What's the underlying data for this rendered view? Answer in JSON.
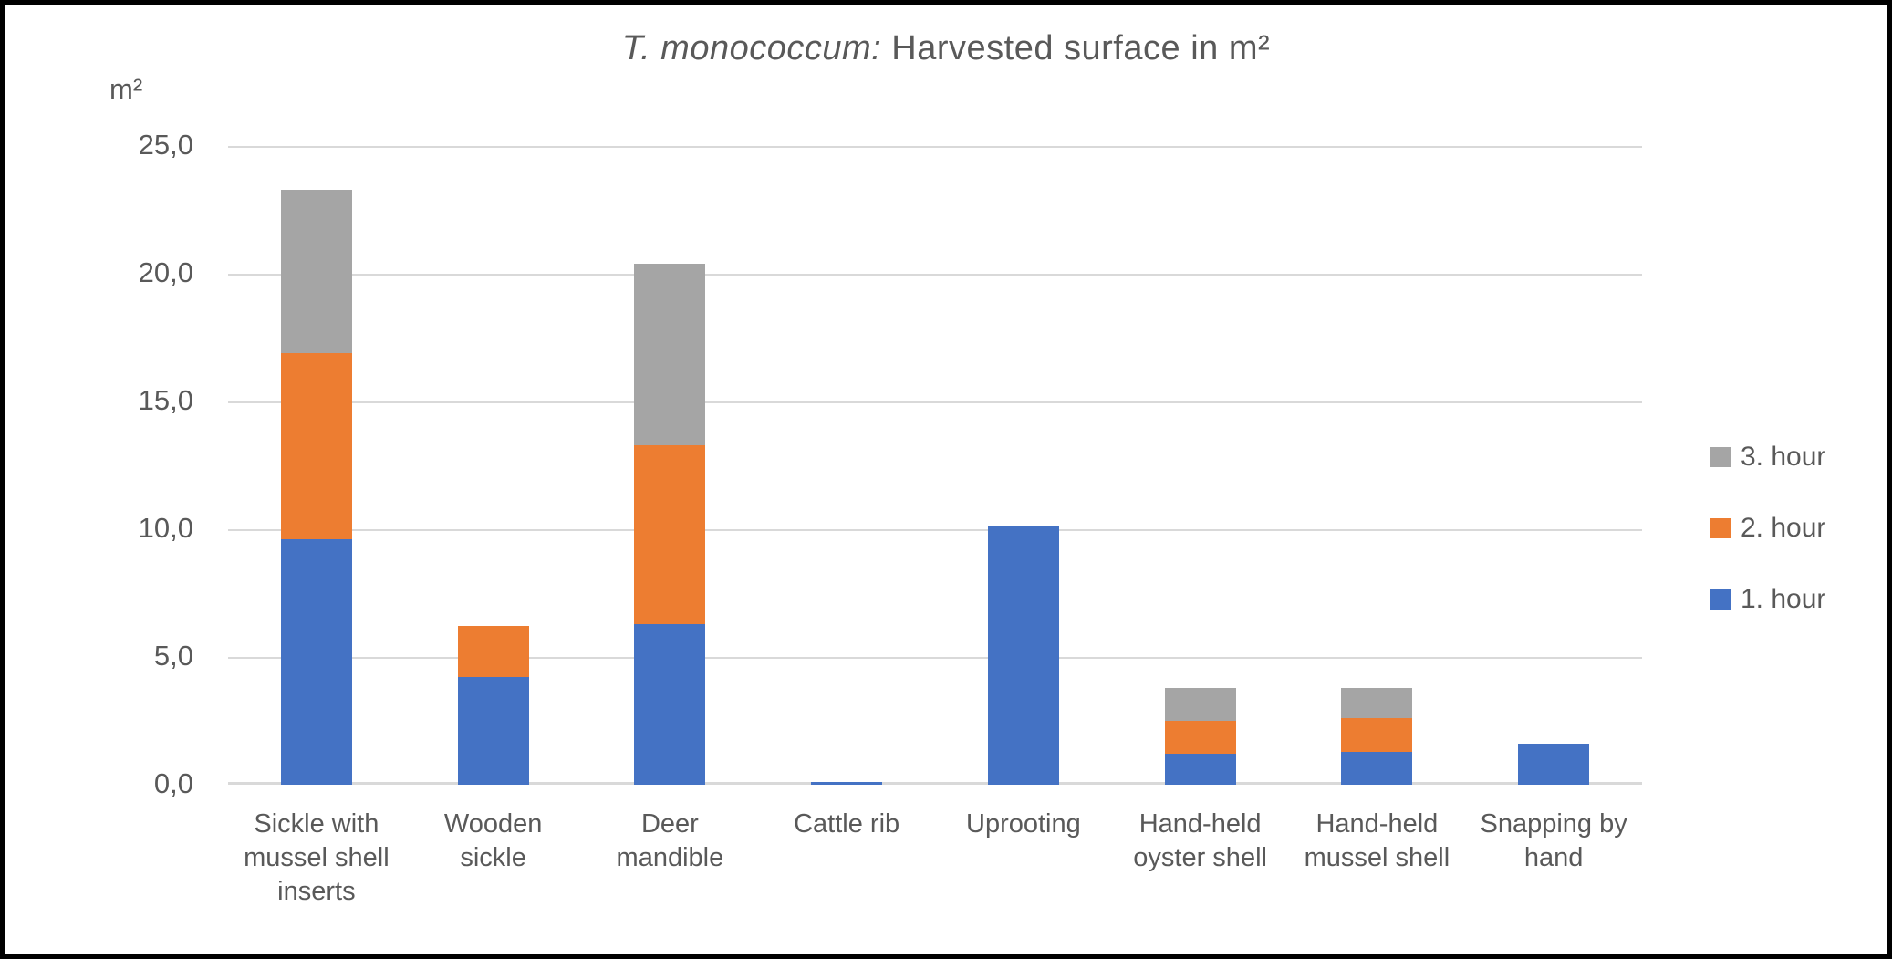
{
  "chart_data": {
    "type": "bar",
    "stacked": true,
    "title": "T. monococcum: Harvested surface in m²",
    "title_italic": "T. monococcum:",
    "title_regular": " Harvested surface in m²",
    "ylabel": "m²",
    "xlabel": "",
    "ylim": [
      0,
      25
    ],
    "grid": true,
    "legend_position": "right",
    "legend_order": [
      "3. hour",
      "2. hour",
      "1. hour"
    ],
    "y_ticks": [
      "25,0",
      "20,0",
      "15,0",
      "10,0",
      "5,0",
      "0,0"
    ],
    "categories": [
      "Sickle with mussel shell inserts",
      "Wooden sickle",
      "Deer mandible",
      "Cattle rib",
      "Uprooting",
      "Hand-held oyster shell",
      "Hand-held mussel shell",
      "Snapping by hand"
    ],
    "x_labels": [
      [
        "Sickle with",
        "mussel shell",
        "inserts"
      ],
      [
        "Wooden",
        "sickle"
      ],
      [
        "Deer",
        "mandible"
      ],
      [
        "Cattle rib"
      ],
      [
        "Uprooting"
      ],
      [
        "Hand-held",
        "oyster shell"
      ],
      [
        "Hand-held",
        "mussel shell"
      ],
      [
        "Snapping by",
        "hand"
      ]
    ],
    "series": [
      {
        "name": "1. hour",
        "color": "#4472C4",
        "values": [
          9.6,
          4.2,
          6.3,
          0.1,
          10.1,
          1.2,
          1.3,
          1.6
        ]
      },
      {
        "name": "2. hour",
        "color": "#ED7D31",
        "values": [
          7.3,
          2.0,
          7.0,
          0.0,
          0.0,
          1.3,
          1.3,
          0.0
        ]
      },
      {
        "name": "3. hour",
        "color": "#A5A5A5",
        "values": [
          6.4,
          0.0,
          7.1,
          0.0,
          0.0,
          1.3,
          1.2,
          0.0
        ]
      }
    ]
  },
  "colors": {
    "text": "#595959",
    "gridline": "#D9D9D9",
    "background": "#FFFFFF",
    "frame_border": "#000000"
  }
}
